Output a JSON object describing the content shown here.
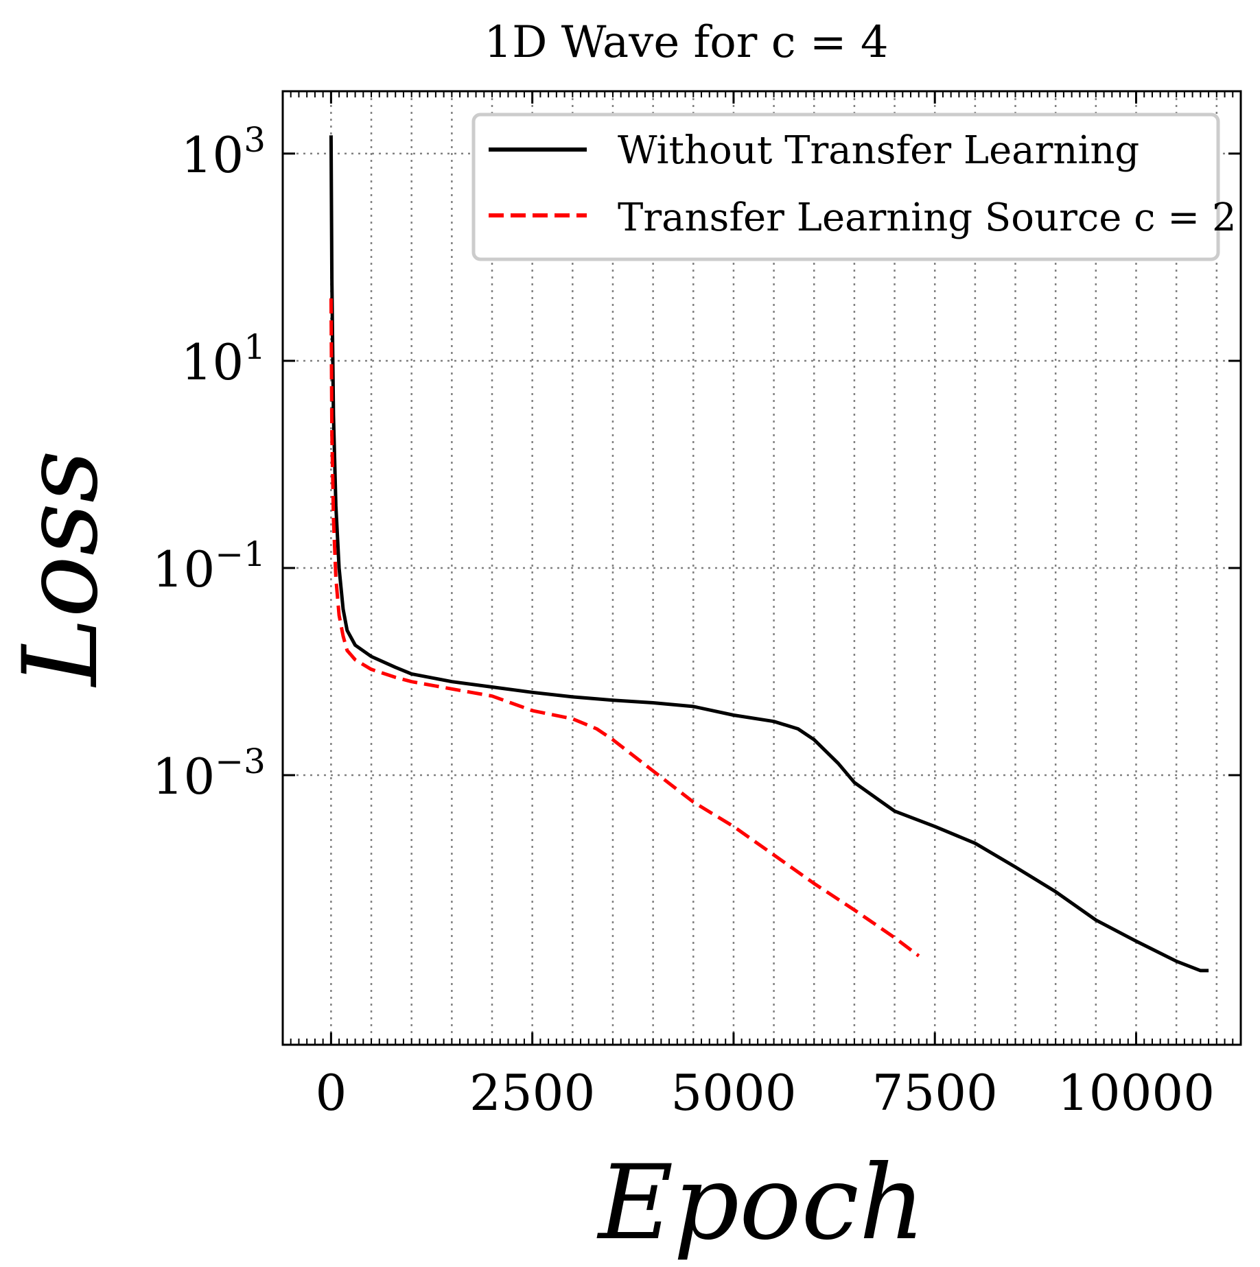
{
  "chart_data": {
    "type": "line",
    "title": "1D Wave for c = 4",
    "xlabel": "Epoch",
    "ylabel": "Loss",
    "xlim": [
      -600,
      11300
    ],
    "ylim": [
      2.5e-06,
      4000
    ],
    "yscale": "log",
    "xticks": [
      0,
      2500,
      5000,
      7500,
      10000
    ],
    "xtick_labels": [
      "0",
      "2500",
      "5000",
      "7500",
      "10000"
    ],
    "yticks": [
      1000,
      10,
      0.1,
      0.001
    ],
    "ytick_labels": [
      {
        "base": "10",
        "exp": "3"
      },
      {
        "base": "10",
        "exp": "1"
      },
      {
        "base": "10",
        "exp": "−1"
      },
      {
        "base": "10",
        "exp": "−3"
      }
    ],
    "grid": true,
    "legend_position": "top-right",
    "series": [
      {
        "name": "Without Transfer Learning",
        "color": "#000000",
        "style": "solid",
        "x": [
          0,
          10,
          30,
          60,
          100,
          150,
          200,
          300,
          500,
          800,
          1000,
          1500,
          2000,
          2500,
          3000,
          3500,
          4000,
          4500,
          5000,
          5500,
          5800,
          6000,
          6300,
          6500,
          6800,
          7000,
          7500,
          8000,
          8500,
          9000,
          9500,
          10000,
          10500,
          10800,
          10900
        ],
        "y": [
          1500,
          60,
          3,
          0.4,
          0.1,
          0.04,
          0.025,
          0.018,
          0.014,
          0.011,
          0.0095,
          0.008,
          0.0071,
          0.0063,
          0.0057,
          0.0053,
          0.005,
          0.0046,
          0.0038,
          0.0033,
          0.0028,
          0.0022,
          0.0013,
          0.00085,
          0.00058,
          0.00045,
          0.00032,
          0.00022,
          0.00013,
          7.5e-05,
          4e-05,
          2.5e-05,
          1.6e-05,
          1.3e-05,
          1.3e-05
        ]
      },
      {
        "name": "Transfer Learning Source c = 2",
        "color": "#ff0000",
        "style": "dashed",
        "x": [
          0,
          10,
          30,
          60,
          100,
          150,
          200,
          300,
          500,
          800,
          1000,
          1500,
          2000,
          2500,
          3000,
          3300,
          3500,
          4000,
          4500,
          5000,
          5500,
          6000,
          6500,
          7000,
          7300
        ],
        "y": [
          40,
          2,
          0.3,
          0.08,
          0.035,
          0.022,
          0.016,
          0.013,
          0.0105,
          0.0088,
          0.008,
          0.0068,
          0.0058,
          0.0042,
          0.0035,
          0.0028,
          0.0022,
          0.0011,
          0.00055,
          0.00032,
          0.00017,
          9e-05,
          5e-05,
          2.7e-05,
          1.8e-05
        ]
      }
    ]
  }
}
